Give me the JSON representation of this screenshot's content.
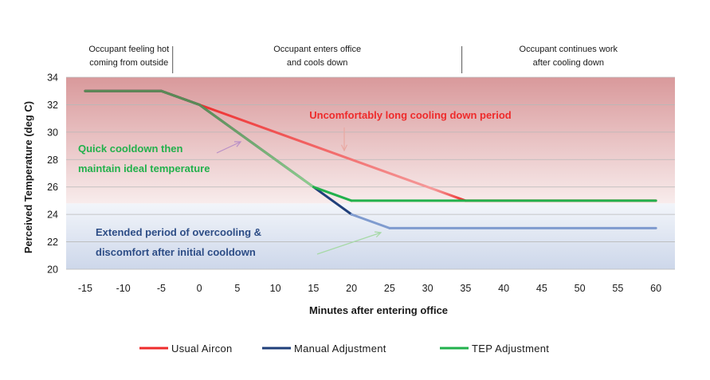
{
  "chart_data": {
    "type": "line",
    "xlabel": "Minutes after entering office",
    "ylabel": "Perceived Temperature (deg C)",
    "xlim": [
      -17.5,
      62.5
    ],
    "ylim": [
      20,
      34
    ],
    "xticks": [
      -15,
      -10,
      -5,
      0,
      5,
      10,
      15,
      20,
      25,
      30,
      35,
      40,
      45,
      50,
      55,
      60
    ],
    "yticks": [
      20,
      22,
      24,
      26,
      28,
      30,
      32,
      34
    ],
    "grid": "horizontal",
    "bands": [
      {
        "name": "uncomfortably-hot-zone",
        "from": 24.8,
        "to": 34,
        "color_top": "#d9999b",
        "color_bottom": "#f8ecec"
      },
      {
        "name": "overcooled-zone",
        "from": 20,
        "to": 24.8,
        "color_top": "#f2f5fa",
        "color_bottom": "#cdd7ea"
      }
    ],
    "phases": [
      {
        "lines": [
          "Occupant feeling hot",
          "coming from outside"
        ],
        "x_from": -15,
        "x_to": -3.5
      },
      {
        "lines": [
          "Occupant enters office",
          "and cools down"
        ],
        "x_from": -3.5,
        "x_to": 34.5
      },
      {
        "lines": [
          "Occupant continues work",
          "after cooling down"
        ],
        "x_from": 34.5,
        "x_to": 62.5
      }
    ],
    "phase_dividers": [
      -3.5,
      34.5
    ],
    "series": [
      {
        "name": "Usual Aircon",
        "color": "#ee2b2b",
        "color_end": "#f08a8a",
        "x": [
          -15,
          -5,
          0,
          35,
          60
        ],
        "y": [
          33,
          33,
          32,
          25,
          25
        ]
      },
      {
        "name": "Manual Adjustment",
        "color": "#1f3f7a",
        "color_end": "#7f9bcf",
        "x": [
          -15,
          -5,
          0,
          15,
          20,
          25,
          60
        ],
        "y": [
          33,
          33,
          32,
          26,
          24,
          23,
          23
        ]
      },
      {
        "name": "TEP Adjustment",
        "color": "#22b14c",
        "color_start": "#5a8a55",
        "color_mid": "#8fcf8f",
        "x": [
          -15,
          -5,
          0,
          15,
          20,
          60
        ],
        "y": [
          33,
          33,
          32,
          26,
          25,
          25
        ]
      }
    ],
    "annotations": [
      {
        "text": "Uncomfortably long cooling down period",
        "color": "#ee2b2b",
        "arrow_to": [
          19,
          28.6
        ]
      },
      {
        "lines": [
          "Quick cooldown then",
          "maintain ideal temperature"
        ],
        "color": "#22b14c",
        "arrow_to": [
          5,
          29.3
        ]
      },
      {
        "lines": [
          "Extended period of overcooling &",
          "discomfort after initial cooldown"
        ],
        "color": "#2d4d86",
        "arrow_to": [
          24,
          22.6
        ]
      }
    ]
  }
}
